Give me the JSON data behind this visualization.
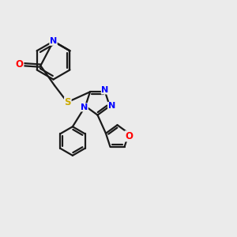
{
  "background_color": "#ebebeb",
  "bond_color": "#1a1a1a",
  "nitrogen_color": "#0000ff",
  "oxygen_color": "#ff0000",
  "sulfur_color": "#ccaa00",
  "bond_width": 1.6,
  "figsize": [
    3.0,
    3.0
  ],
  "dpi": 100,
  "xlim": [
    0,
    10
  ],
  "ylim": [
    0,
    10
  ]
}
